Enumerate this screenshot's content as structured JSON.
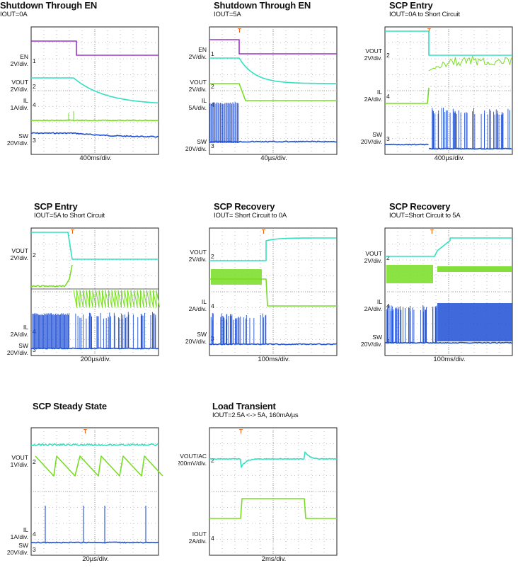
{
  "colors": {
    "en": "#9933cc",
    "vout": "#33e0c0",
    "il": "#77dd22",
    "sw": "#1f4fd6",
    "marker": "#e86a1a",
    "grid": "#8a8a8a"
  },
  "chart_data": [
    {
      "type": "line",
      "title": "Shutdown Through EN",
      "subtitle": "IOUT=0A",
      "xlabel": "400ms/div.",
      "channels": [
        {
          "name": "EN",
          "scale": "2V/div.",
          "color": "en",
          "marker": "1"
        },
        {
          "name": "VOUT",
          "scale": "2V/div.",
          "color": "vout",
          "marker": "2"
        },
        {
          "name": "IL",
          "scale": "1A/div.",
          "color": "il",
          "marker": "4"
        },
        {
          "name": "SW",
          "scale": "20V/div.",
          "color": "sw",
          "marker": "3"
        }
      ]
    },
    {
      "type": "line",
      "title": "Shutdown Through EN",
      "subtitle": "IOUT=5A",
      "xlabel": "40µs/div.",
      "channels": [
        {
          "name": "EN",
          "scale": "2V/div.",
          "color": "en",
          "marker": "1"
        },
        {
          "name": "VOUT",
          "scale": "2V/div.",
          "color": "vout",
          "marker": "2"
        },
        {
          "name": "IL",
          "scale": "5A/div.",
          "color": "il",
          "marker": "4"
        },
        {
          "name": "SW",
          "scale": "20V/div.",
          "color": "sw",
          "marker": "3"
        }
      ]
    },
    {
      "type": "line",
      "title": "SCP Entry",
      "subtitle": "IOUT=0A to Short Circuit",
      "xlabel": "400µs/div.",
      "channels": [
        {
          "name": "VOUT",
          "scale": "2V/div.",
          "color": "vout",
          "marker": "2"
        },
        {
          "name": "IL",
          "scale": "2A/div.",
          "color": "il",
          "marker": "4"
        },
        {
          "name": "SW",
          "scale": "20V/div.",
          "color": "sw",
          "marker": "3"
        }
      ]
    },
    {
      "type": "line",
      "title": "SCP Entry",
      "subtitle": "IOUT=5A  to Short Circuit",
      "xlabel": "200µs/div.",
      "channels": [
        {
          "name": "VOUT",
          "scale": "2V/div.",
          "color": "vout",
          "marker": "2"
        },
        {
          "name": "IL",
          "scale": "2A/div.",
          "color": "il",
          "marker": "4"
        },
        {
          "name": "SW",
          "scale": "20V/div.",
          "color": "sw",
          "marker": "3"
        }
      ]
    },
    {
      "type": "line",
      "title": "SCP Recovery",
      "subtitle": "IOUT= Short Circuit to 0A",
      "xlabel": "100ms/div.",
      "channels": [
        {
          "name": "VOUT",
          "scale": "2V/div.",
          "color": "vout",
          "marker": "2"
        },
        {
          "name": "IL",
          "scale": "2A/div.",
          "color": "il",
          "marker": "4"
        },
        {
          "name": "SW",
          "scale": "20V/div.",
          "color": "sw",
          "marker": "3"
        }
      ]
    },
    {
      "type": "line",
      "title": "SCP Recovery",
      "subtitle": "IOUT=Short Circuit to 5A",
      "xlabel": "100ms/div.",
      "channels": [
        {
          "name": "VOUT",
          "scale": "2V/div.",
          "color": "vout",
          "marker": "2"
        },
        {
          "name": "IL",
          "scale": "2A/div.",
          "color": "il",
          "marker": "4"
        },
        {
          "name": "SW",
          "scale": "20V/div.",
          "color": "sw",
          "marker": "3"
        }
      ]
    },
    {
      "type": "line",
      "title": "SCP Steady State",
      "subtitle": "",
      "xlabel": "20µs/div.",
      "channels": [
        {
          "name": "VOUT",
          "scale": "1V/div.",
          "color": "vout",
          "marker": "2"
        },
        {
          "name": "IL",
          "scale": "1A/div.",
          "color": "il",
          "marker": "4"
        },
        {
          "name": "SW",
          "scale": "20V/div.",
          "color": "sw",
          "marker": "3"
        }
      ]
    },
    {
      "type": "line",
      "title": "Load Transient",
      "subtitle": "IOUT=2.5A <-> 5A, 160mA/µs",
      "xlabel": "2ms/div.",
      "channels": [
        {
          "name": "VOUT/AC",
          "scale": "200mV/div.",
          "color": "vout",
          "marker": "2"
        },
        {
          "name": "IOUT",
          "scale": "2A/div.",
          "color": "il",
          "marker": "4"
        }
      ]
    }
  ]
}
